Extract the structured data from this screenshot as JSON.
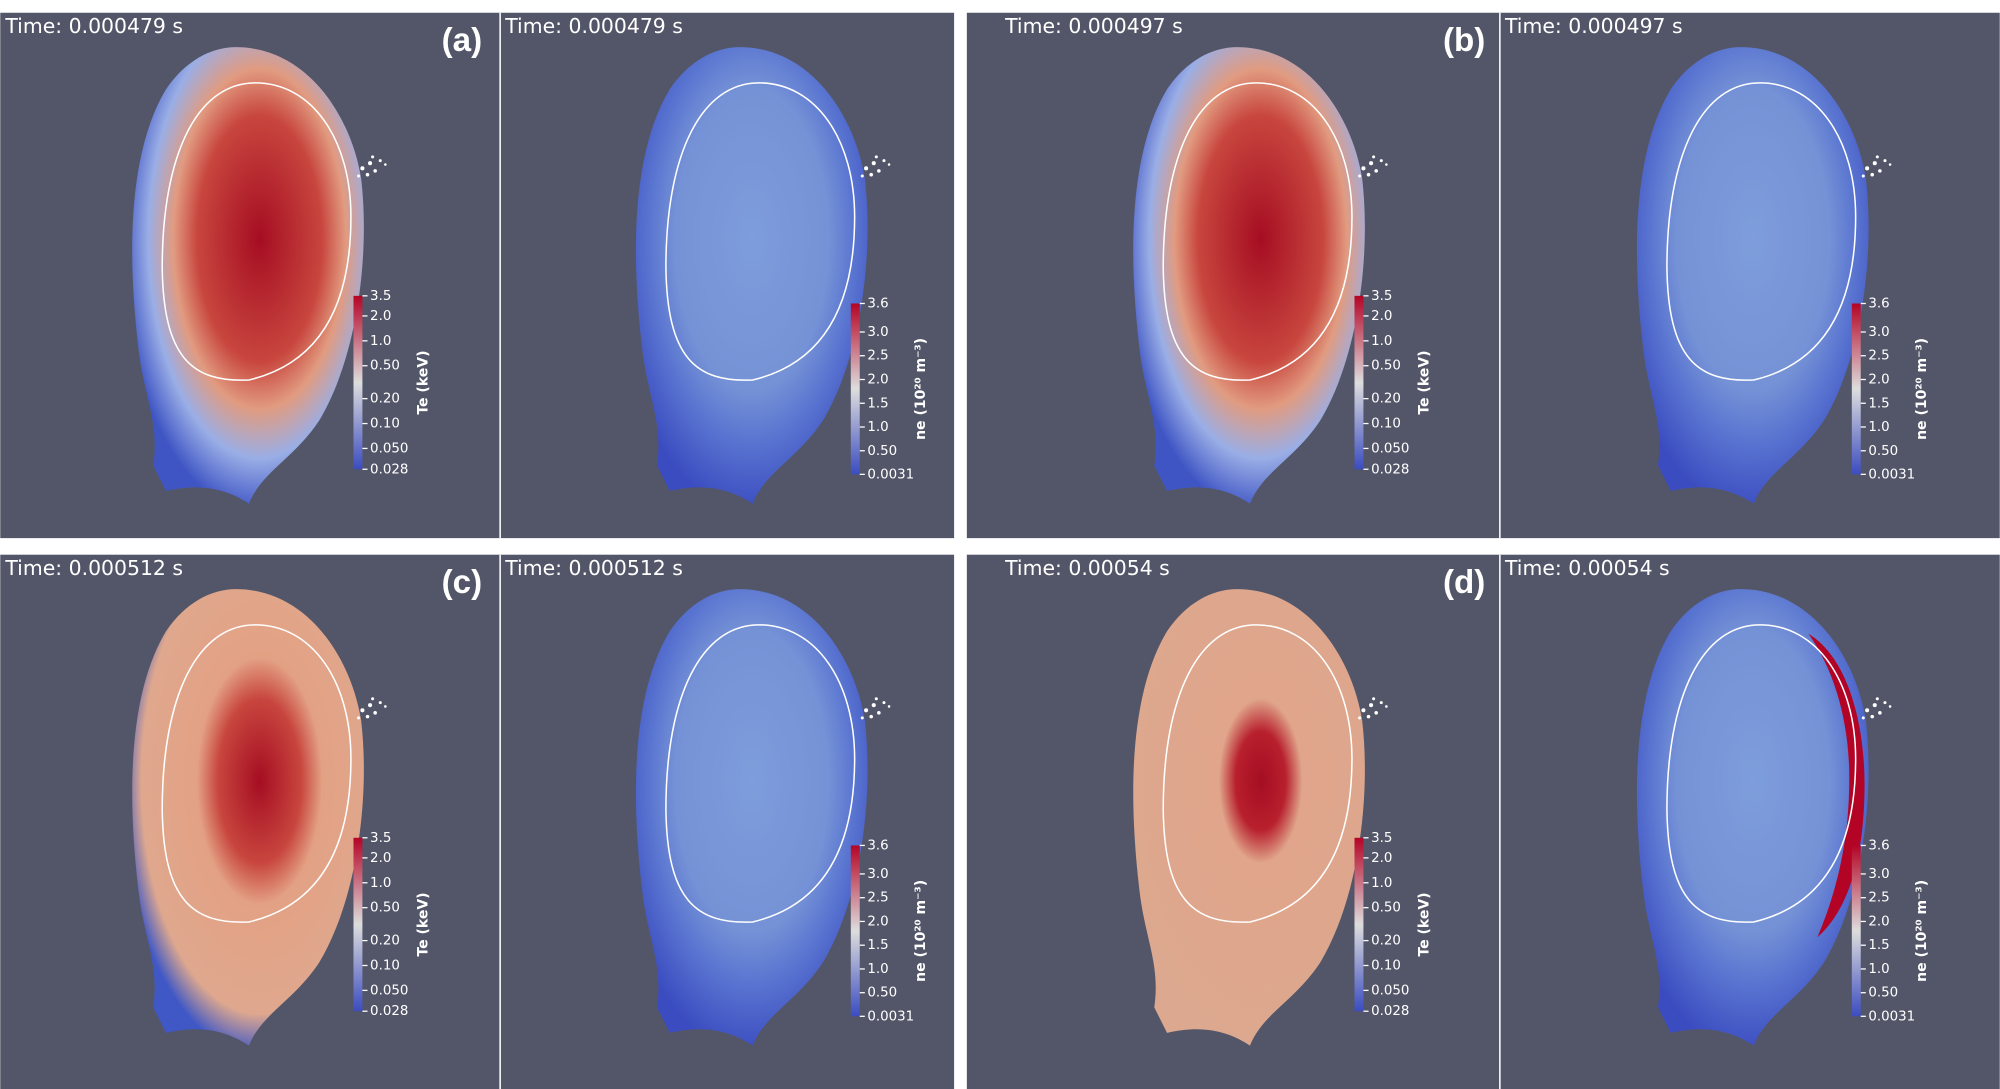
{
  "figure": {
    "panels": [
      {
        "label": "(a)",
        "te_time": "Time: 0.000479 s",
        "ne_time": "Time: 0.000479 s"
      },
      {
        "label": "(b)",
        "te_time": "Time: 0.000497 s",
        "ne_time": "Time: 0.000497 s"
      },
      {
        "label": "(c)",
        "te_time": "Time: 0.000512 s",
        "ne_time": "Time: 0.000512 s"
      },
      {
        "label": "(d)",
        "te_time": "Time: 0.00054 s",
        "ne_time": "Time: 0.00054 s"
      }
    ],
    "te_colorbar": {
      "title": "Te (keV)",
      "scale": "log",
      "ticks": [
        3.5,
        {
          "value": 2,
          "label": "2.0"
        },
        {
          "value": 1,
          "label": "1.0"
        },
        {
          "value": 0.5,
          "label": "0.50"
        },
        {
          "value": 0.2,
          "label": "0.20"
        },
        {
          "value": 0.1,
          "label": "0.10"
        },
        {
          "value": 0.05,
          "label": "0.050"
        },
        0.028
      ]
    },
    "ne_colorbar": {
      "title": "ne (10²⁰ m⁻³)",
      "scale": "linear",
      "ticks": [
        3.6,
        {
          "value": 3,
          "label": "3.0"
        },
        2.5,
        {
          "value": 2,
          "label": "2.0"
        },
        1.5,
        {
          "value": 1,
          "label": "1.0"
        },
        {
          "value": 0.5,
          "label": "0.50"
        },
        0.0031
      ]
    }
  }
}
